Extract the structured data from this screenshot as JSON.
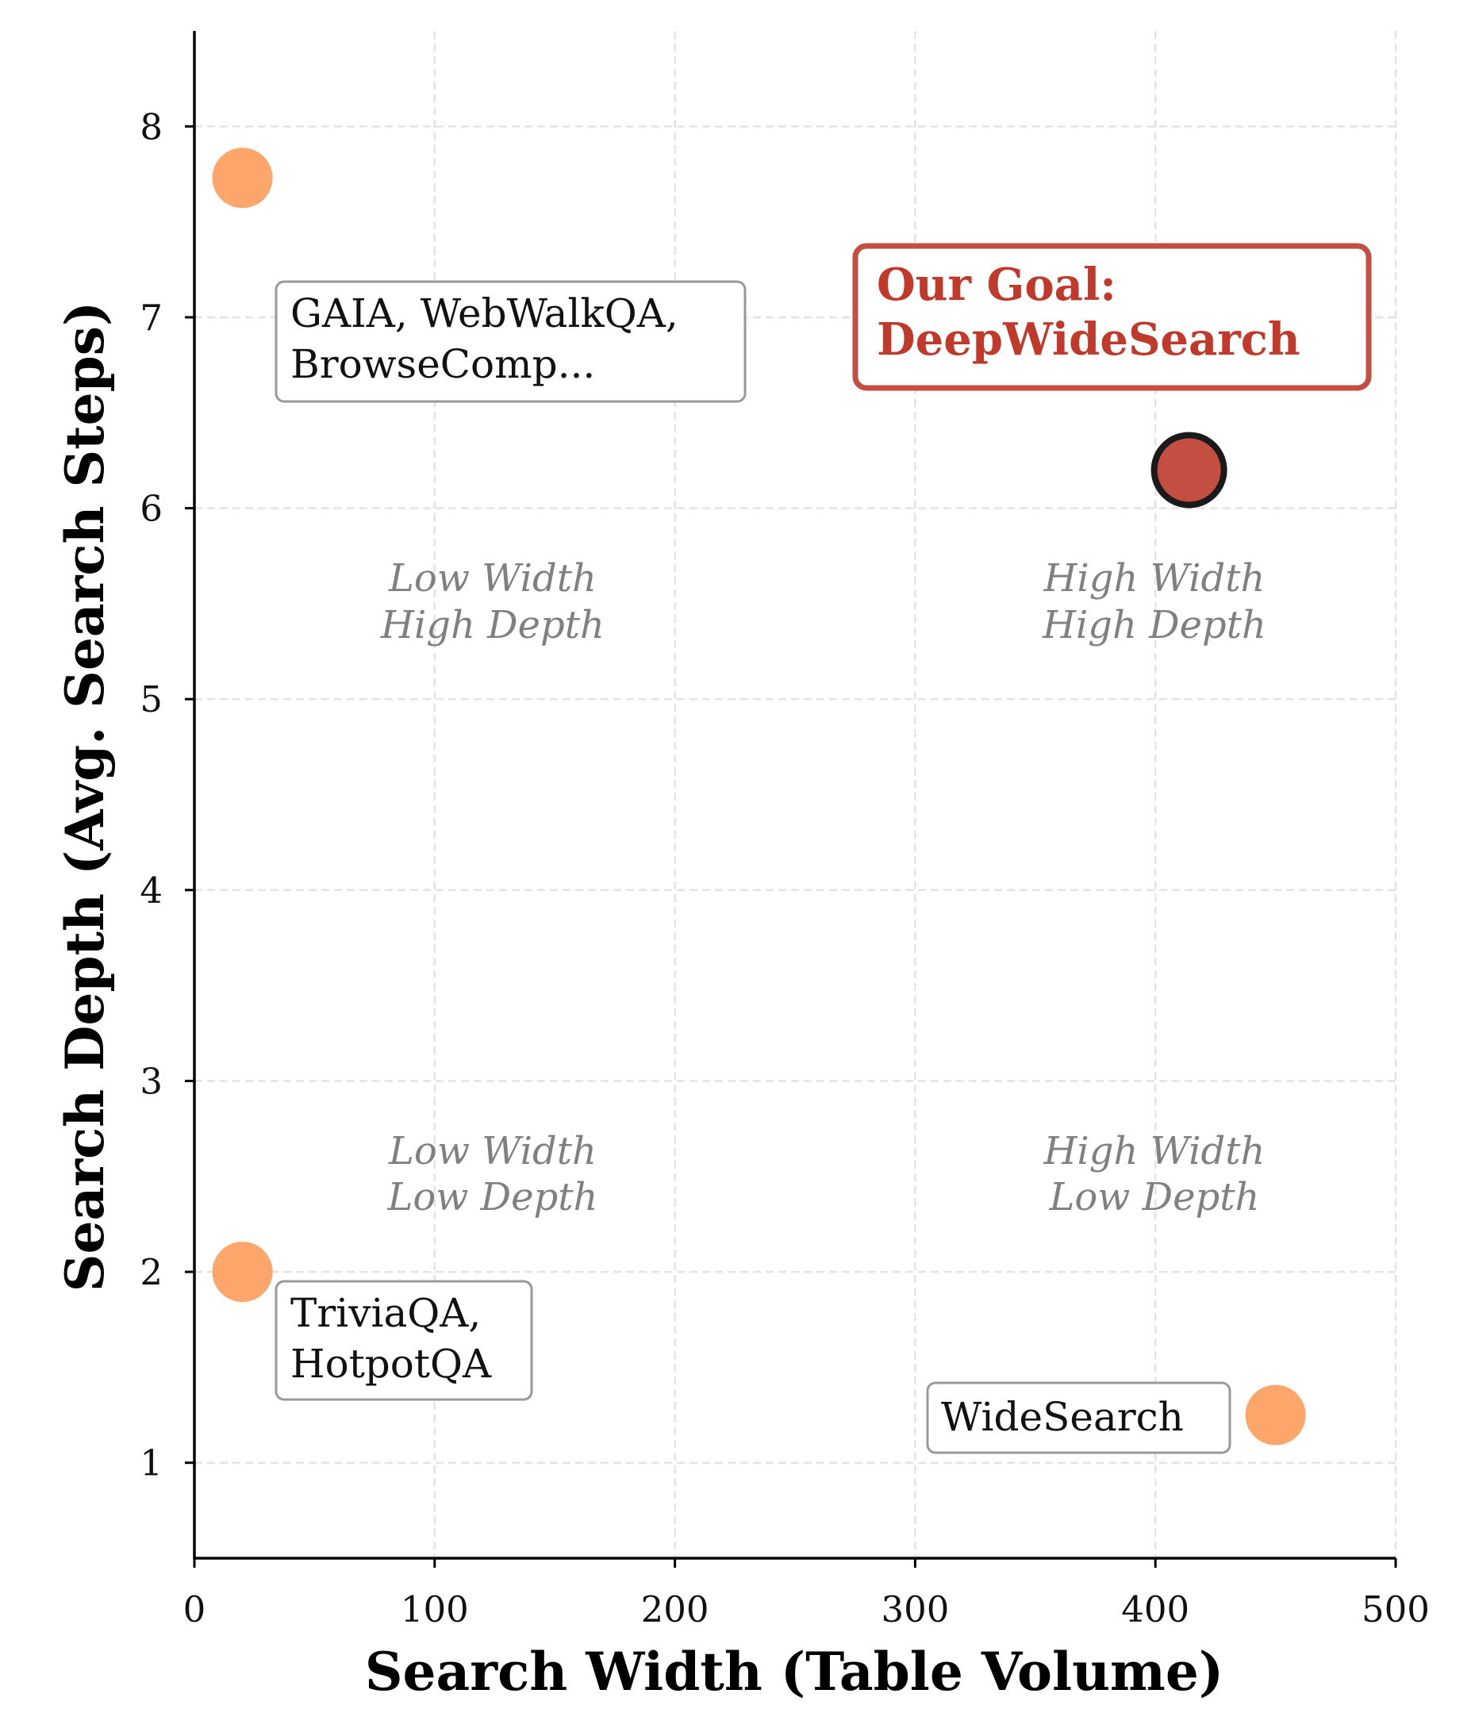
{
  "chart_data": {
    "type": "scatter",
    "title": "",
    "xlabel": "Search Width (Table Volume)",
    "ylabel": "Search Depth (Avg. Search Steps)",
    "xlim": [
      0,
      500
    ],
    "ylim": [
      0.5,
      8.5
    ],
    "xticks": [
      0,
      100,
      200,
      300,
      400,
      500
    ],
    "yticks": [
      1,
      2,
      3,
      4,
      5,
      6,
      7,
      8
    ],
    "grid": true,
    "points": [
      {
        "name": "GAIA, WebWalkQA, BrowseComp...",
        "label_lines": [
          "GAIA, WebWalkQA,",
          "BrowseComp..."
        ],
        "x": 20,
        "y": 7.73,
        "color": "#FDA66B",
        "highlight": false
      },
      {
        "name": "TriviaQA, HotpotQA",
        "label_lines": [
          "TriviaQA,",
          "HotpotQA"
        ],
        "x": 20,
        "y": 2.0,
        "color": "#FDA66B",
        "highlight": false
      },
      {
        "name": "WideSearch",
        "label_lines": [
          "WideSearch"
        ],
        "x": 450,
        "y": 1.25,
        "color": "#FDA66B",
        "highlight": false
      },
      {
        "name": "Our Goal: DeepWideSearch",
        "label_lines": [
          "Our Goal:",
          "DeepWideSearch"
        ],
        "x": 414,
        "y": 6.2,
        "color": "#C44E42",
        "highlight": true
      }
    ],
    "quadrants": [
      [
        "Low Width",
        "High Depth"
      ],
      [
        "High Width",
        "High Depth"
      ],
      [
        "Low Width",
        "Low Depth"
      ],
      [
        "High Width",
        "Low Depth"
      ]
    ]
  }
}
